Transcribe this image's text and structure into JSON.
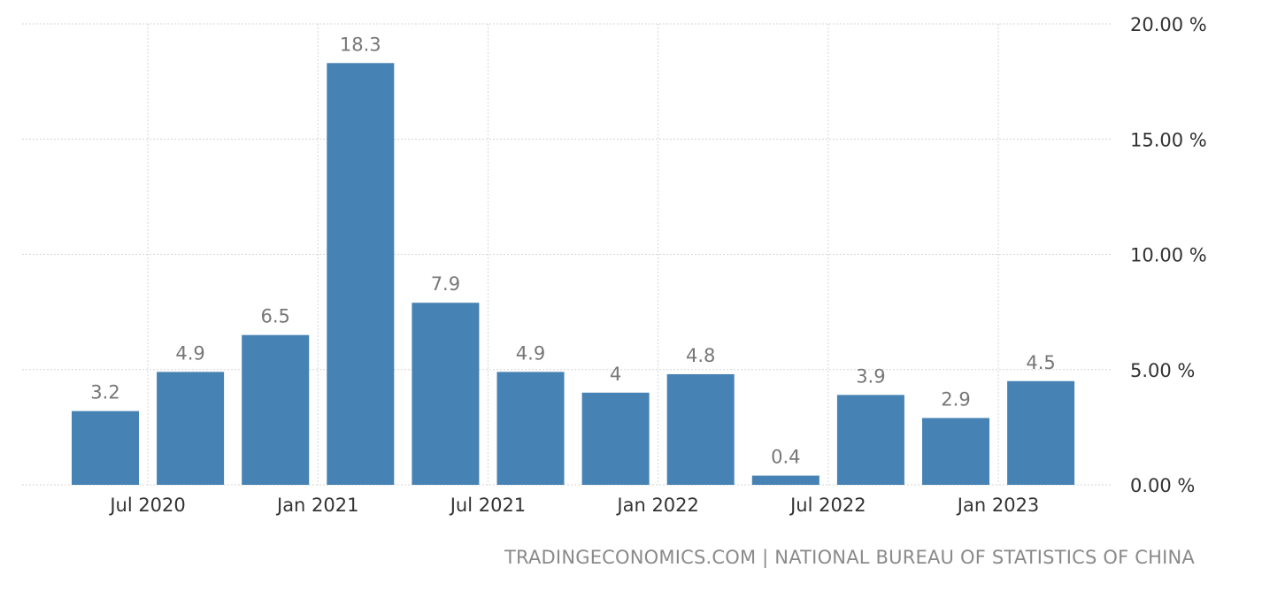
{
  "chart_data": {
    "type": "bar",
    "x": [
      "2020-Q2",
      "2020-Q3",
      "2020-Q4",
      "2021-Q1",
      "2021-Q2",
      "2021-Q3",
      "2021-Q4",
      "2022-Q1",
      "2022-Q2",
      "2022-Q3",
      "2022-Q4",
      "2023-Q1"
    ],
    "values": [
      3.2,
      4.9,
      6.5,
      18.3,
      7.9,
      4.9,
      4,
      4.8,
      0.4,
      3.9,
      2.9,
      4.5
    ],
    "value_labels": [
      "3.2",
      "4.9",
      "6.5",
      "18.3",
      "7.9",
      "4.9",
      "4",
      "4.8",
      "0.4",
      "3.9",
      "2.9",
      "4.5"
    ],
    "x_tick_labels": [
      "Jul 2020",
      "Jan 2021",
      "Jul 2021",
      "Jan 2022",
      "Jul 2022",
      "Jan 2023"
    ],
    "y_tick_labels": [
      "20.00 %",
      "15.00 %",
      "10.00 %",
      "5.00 %",
      "0.00 %"
    ],
    "y_ticks": [
      20,
      15,
      10,
      5,
      0
    ],
    "ylim": [
      0,
      20
    ],
    "grid": true,
    "y_axis_position": "right",
    "bar_color": "#4682b4"
  },
  "source": "TRADINGECONOMICS.COM | NATIONAL BUREAU OF STATISTICS OF CHINA"
}
